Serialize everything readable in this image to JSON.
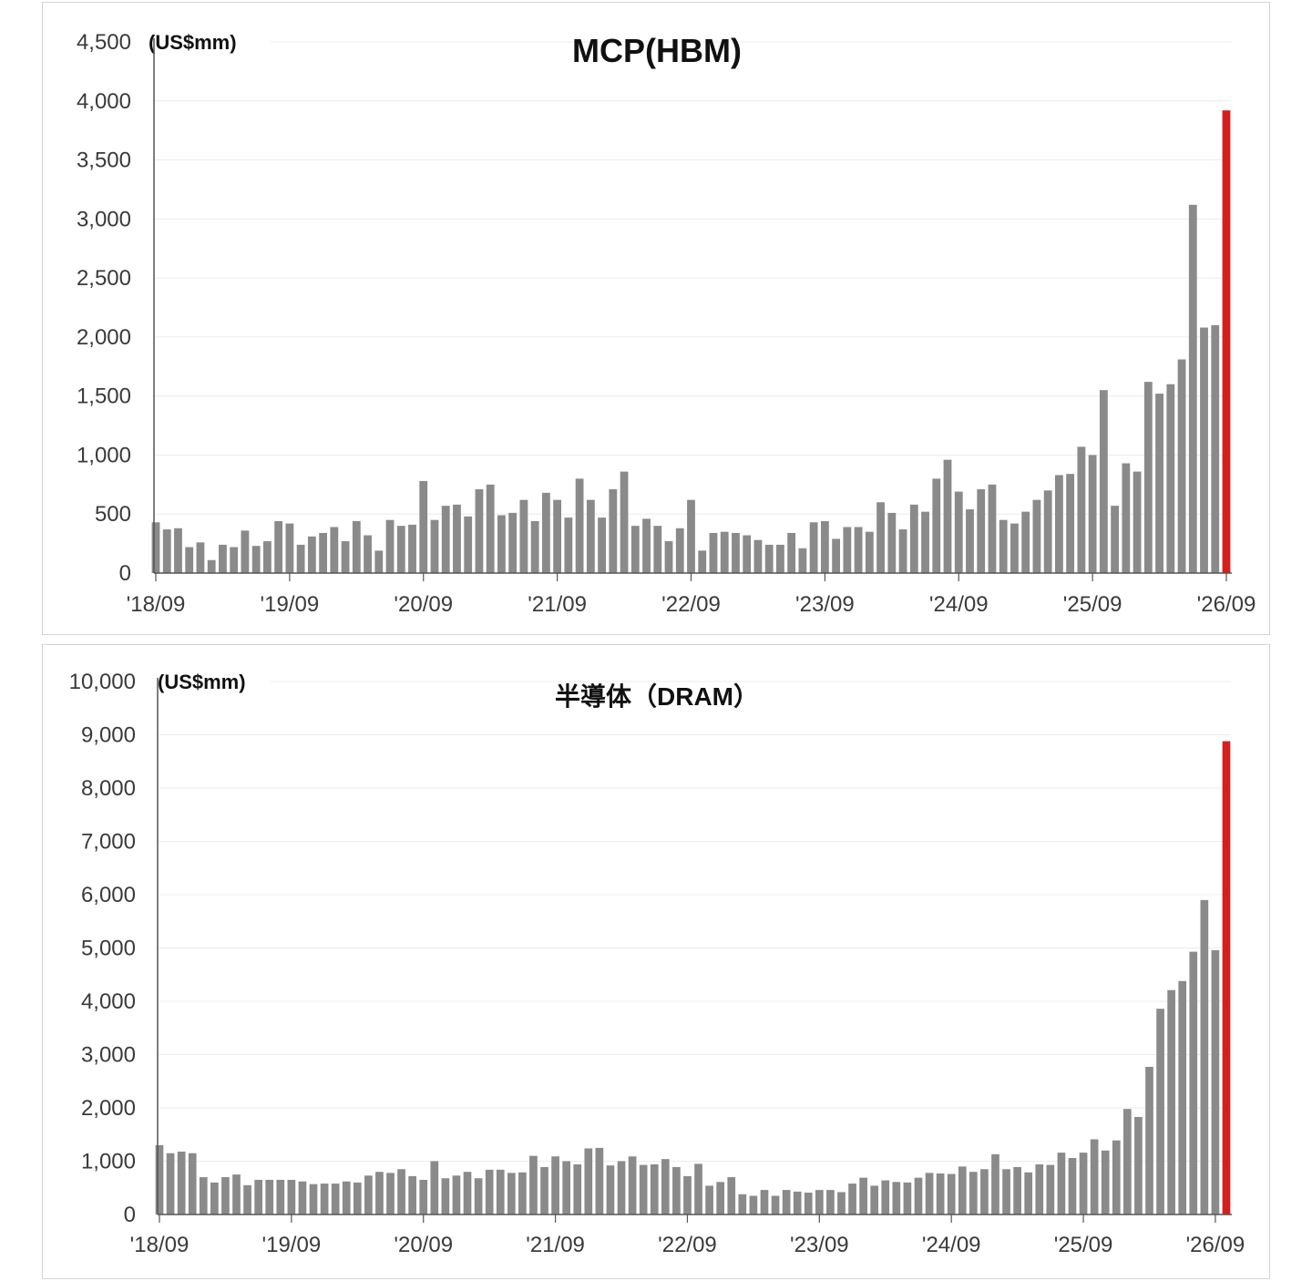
{
  "colors": {
    "bar": "#8a8a8a",
    "highlight": "#d41f1f",
    "axis": "#555555",
    "grid": "#ececec"
  },
  "chart_data": [
    {
      "type": "bar",
      "title": "MCP(HBM)",
      "unit_label": "(US$mm)",
      "ylim": [
        0,
        4500
      ],
      "yticks": [
        0,
        500,
        1000,
        1500,
        2000,
        2500,
        3000,
        3500,
        4000,
        4500
      ],
      "ytick_labels": [
        "0",
        "500",
        "1,000",
        "1,500",
        "2,000",
        "2,500",
        "3,000",
        "3,500",
        "4,000",
        "4,500"
      ],
      "xtick_labels": [
        "'18/09",
        "'19/09",
        "'20/09",
        "'21/09",
        "'22/09",
        "'23/09",
        "'24/09",
        "'25/09",
        "'26/09"
      ],
      "grid": true,
      "highlight": "last bar in red",
      "values": [
        430,
        370,
        380,
        220,
        260,
        110,
        240,
        220,
        360,
        230,
        270,
        440,
        420,
        240,
        310,
        340,
        390,
        270,
        440,
        320,
        190,
        450,
        400,
        410,
        780,
        450,
        570,
        580,
        480,
        710,
        750,
        490,
        510,
        620,
        440,
        680,
        620,
        470,
        800,
        620,
        470,
        710,
        860,
        400,
        460,
        400,
        270,
        380,
        620,
        190,
        340,
        350,
        340,
        320,
        280,
        240,
        240,
        340,
        210,
        430,
        440,
        290,
        390,
        390,
        350,
        600,
        510,
        370,
        580,
        520,
        800,
        960,
        690,
        540,
        710,
        750,
        450,
        420,
        520,
        620,
        700,
        830,
        840,
        1070,
        1000,
        1550,
        570,
        930,
        860,
        1620,
        1520,
        1600,
        1810,
        3120,
        2080,
        2100,
        3920
      ]
    },
    {
      "type": "bar",
      "title": "半導体（DRAM）",
      "unit_label": "(US$mm)",
      "ylim": [
        0,
        10000
      ],
      "yticks": [
        0,
        1000,
        2000,
        3000,
        4000,
        5000,
        6000,
        7000,
        8000,
        9000,
        10000
      ],
      "ytick_labels": [
        "0",
        "1,000",
        "2,000",
        "3,000",
        "4,000",
        "5,000",
        "6,000",
        "7,000",
        "8,000",
        "9,000",
        "10,000"
      ],
      "xtick_labels": [
        "'18/09",
        "'19/09",
        "'20/09",
        "'21/09",
        "'22/09",
        "'23/09",
        "'24/09",
        "'25/09",
        "'26/09"
      ],
      "grid": true,
      "highlight": "last bar in red",
      "values": [
        1300,
        1150,
        1180,
        1150,
        700,
        600,
        700,
        750,
        550,
        650,
        650,
        650,
        650,
        620,
        570,
        580,
        580,
        620,
        600,
        730,
        800,
        780,
        850,
        720,
        650,
        1000,
        680,
        730,
        800,
        680,
        840,
        840,
        780,
        790,
        1100,
        890,
        1090,
        1000,
        940,
        1240,
        1250,
        920,
        1000,
        1090,
        930,
        940,
        1040,
        890,
        720,
        950,
        540,
        610,
        700,
        380,
        350,
        460,
        350,
        460,
        430,
        410,
        460,
        460,
        420,
        580,
        690,
        540,
        640,
        610,
        600,
        690,
        780,
        770,
        760,
        900,
        800,
        850,
        1130,
        850,
        890,
        790,
        940,
        930,
        1160,
        1060,
        1160,
        1410,
        1200,
        1390,
        1980,
        1830,
        2770,
        3860,
        4210,
        4380,
        4930,
        5900,
        4960,
        8880
      ]
    }
  ]
}
